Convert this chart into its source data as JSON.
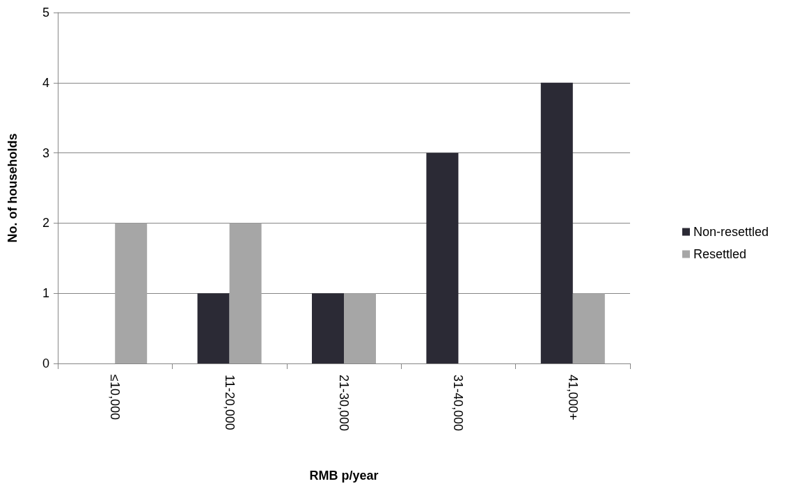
{
  "chart_data": {
    "type": "bar",
    "xlabel": "RMB p/year",
    "ylabel": "No. of households",
    "categories": [
      "≤10,000",
      "11-20,000",
      "21-30,000",
      "31-40,000",
      "41,000+"
    ],
    "series": [
      {
        "name": "Non-resettled",
        "color": "#2b2a35",
        "values": [
          0,
          1,
          1,
          3,
          4
        ]
      },
      {
        "name": "Resettled",
        "color": "#a6a6a6",
        "values": [
          2,
          2,
          1,
          0,
          1
        ]
      }
    ],
    "ylim": [
      0,
      5
    ],
    "yticks": [
      0,
      1,
      2,
      3,
      4,
      5
    ],
    "grid": "y",
    "legend": "right"
  }
}
